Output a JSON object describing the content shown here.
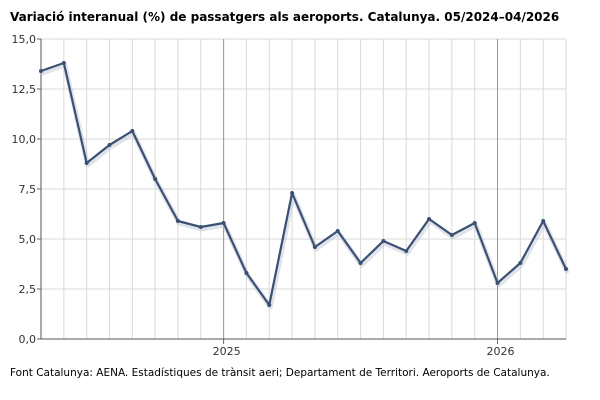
{
  "chart_data": {
    "type": "line",
    "title": "Variació interanual (%) de passatgers als aeroports. Catalunya. 05/2024–04/2026",
    "source": "Font Catalunya: AENA. Estadístiques de trànsit aeri; Departament de Territori. Aeroports de Catalunya.",
    "xlabel": "",
    "ylabel": "",
    "ylim": [
      0,
      15
    ],
    "y_ticks": [
      "0,0",
      "2,5",
      "5,0",
      "7,5",
      "10,0",
      "12,5",
      "15,0"
    ],
    "x_year_labels": [
      {
        "label": "2025",
        "index": 8
      },
      {
        "label": "2026",
        "index": 20
      }
    ],
    "grid": true,
    "colors": {
      "line": "#3b5173",
      "grid": "#d9d9d9",
      "year_line": "#999999"
    },
    "series": [
      {
        "values": [
          13.4,
          13.8,
          8.8,
          9.7,
          10.4,
          8.0,
          5.9,
          5.6,
          5.8,
          3.3,
          1.7,
          7.3,
          4.6,
          5.4,
          3.8,
          4.9,
          4.4,
          6.0,
          5.2,
          5.8,
          2.8,
          3.8,
          5.9,
          3.5
        ]
      }
    ]
  }
}
